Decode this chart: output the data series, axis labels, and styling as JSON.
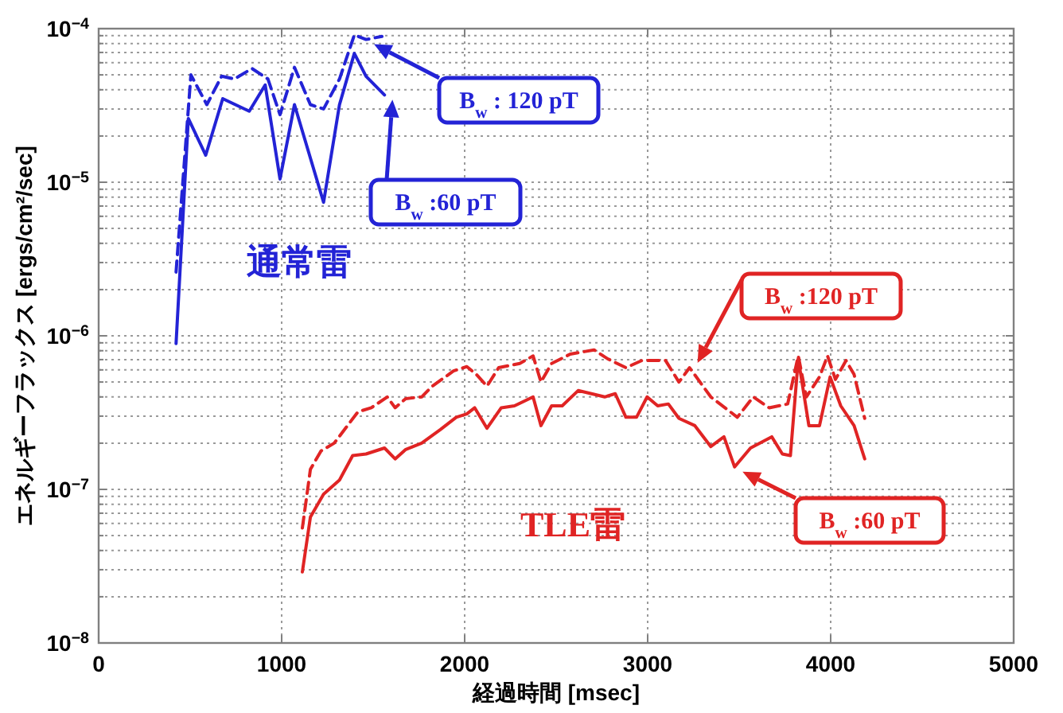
{
  "chart_data": {
    "type": "line",
    "xlabel": "経過時間 [msec]",
    "ylabel": "エネルギーフラックス [ergs/cm²/sec]",
    "log": true,
    "xlim": [
      0,
      5000
    ],
    "xticks": [
      0,
      1000,
      2000,
      3000,
      4000,
      5000
    ],
    "ylim": [
      1e-08,
      0.0001
    ],
    "yticks": [
      {
        "value": 1e-08,
        "label": "10$^{−8}$"
      },
      {
        "value": 1e-07,
        "label": "10$^{−7}$"
      },
      {
        "value": 1e-06,
        "label": "10$^{−6}$"
      },
      {
        "value": 1e-05,
        "label": "10$^{−5}$"
      },
      {
        "value": 0.0001,
        "label": "10$^{−4}$"
      }
    ],
    "grid": true,
    "series": [
      {
        "name": "B$_{w}$ : 120 pT",
        "color": "#2323d6",
        "line_style": "dashed",
        "x": [
          423,
          504,
          591,
          672,
          742,
          838,
          925,
          991,
          1070,
          1157,
          1229,
          1316,
          1397,
          1461,
          1548
        ],
        "values": [
          2.6e-06,
          5e-05,
          3.2e-05,
          4.9e-05,
          4.7e-05,
          5.5e-05,
          4.7e-05,
          2.75e-05,
          5.6e-05,
          3.2e-05,
          3e-05,
          4.7e-05,
          9.1e-05,
          8.5e-05,
          8.9e-05
        ]
      },
      {
        "name": "B$_{w}$ :60 pT",
        "color": "#2323d6",
        "line_style": "solid",
        "x": [
          423,
          490,
          585,
          678,
          823,
          910,
          991,
          1070,
          1229,
          1316,
          1397,
          1461,
          1562
        ],
        "values": [
          8.9e-07,
          2.6e-05,
          1.5e-05,
          3.5e-05,
          2.9e-05,
          4.3e-05,
          1.05e-05,
          3.2e-05,
          7.4e-06,
          3.2e-05,
          6.9e-05,
          4.9e-05,
          3.7e-05
        ]
      },
      {
        "name": "B$_{w}$ :120 pT",
        "color": "#e02424",
        "line_style": "dashed",
        "x": [
          1113,
          1157,
          1215,
          1287,
          1417,
          1490,
          1577,
          1620,
          1678,
          1765,
          1823,
          1939,
          2012,
          2064,
          2122,
          2186,
          2301,
          2374,
          2417,
          2475,
          2577,
          2707,
          2780,
          2881,
          2968,
          3098,
          3171,
          3229,
          3345,
          3490,
          3577,
          3664,
          3765,
          3823,
          3867,
          3939,
          3983,
          4026,
          4084,
          4128,
          4186
        ],
        "values": [
          5.6e-08,
          1.35e-07,
          1.78e-07,
          2e-07,
          3.2e-07,
          3.4e-07,
          4e-07,
          3.4e-07,
          3.9e-07,
          4e-07,
          4.7e-07,
          5.9e-07,
          6.3e-07,
          5.6e-07,
          4.7e-07,
          6.2e-07,
          6.6e-07,
          7.4e-07,
          5e-07,
          6.6e-07,
          7.6e-07,
          8.1e-07,
          7.1e-07,
          6.2e-07,
          6.9e-07,
          6.9e-07,
          5e-07,
          6.2e-07,
          4e-07,
          2.95e-07,
          4e-07,
          3.4e-07,
          3.6e-07,
          7.4e-07,
          4e-07,
          5.4e-07,
          7.4e-07,
          5.2e-07,
          6.9e-07,
          5.6e-07,
          2.9e-07
        ]
      },
      {
        "name": "B$_{w}$ :60 pT",
        "color": "#e02424",
        "line_style": "solid",
        "x": [
          1113,
          1157,
          1229,
          1316,
          1388,
          1461,
          1562,
          1620,
          1678,
          1765,
          1867,
          1954,
          2012,
          2055,
          2122,
          2200,
          2272,
          2374,
          2417,
          2475,
          2533,
          2620,
          2693,
          2765,
          2823,
          2881,
          2939,
          2997,
          3055,
          3113,
          3171,
          3258,
          3345,
          3417,
          3475,
          3562,
          3678,
          3736,
          3780,
          3823,
          3881,
          3939,
          3997,
          4055,
          4128,
          4186
        ],
        "values": [
          2.9e-08,
          6.6e-08,
          9.3e-08,
          1.15e-07,
          1.66e-07,
          1.7e-07,
          1.86e-07,
          1.58e-07,
          1.82e-07,
          2e-07,
          2.45e-07,
          2.95e-07,
          3.1e-07,
          3.4e-07,
          2.5e-07,
          3.4e-07,
          3.5e-07,
          4e-07,
          2.6e-07,
          3.5e-07,
          3.5e-07,
          4.4e-07,
          4.2e-07,
          4e-07,
          4.2e-07,
          2.95e-07,
          2.95e-07,
          4e-07,
          3.5e-07,
          3.6e-07,
          2.9e-07,
          2.6e-07,
          1.9e-07,
          2.2e-07,
          1.4e-07,
          1.86e-07,
          2.2e-07,
          1.7e-07,
          1.66e-07,
          7.1e-07,
          2.6e-07,
          2.6e-07,
          5.4e-07,
          3.5e-07,
          2.6e-07,
          1.58e-07
        ]
      }
    ],
    "annotations": [
      "通常雷",
      "TLE雷"
    ]
  }
}
